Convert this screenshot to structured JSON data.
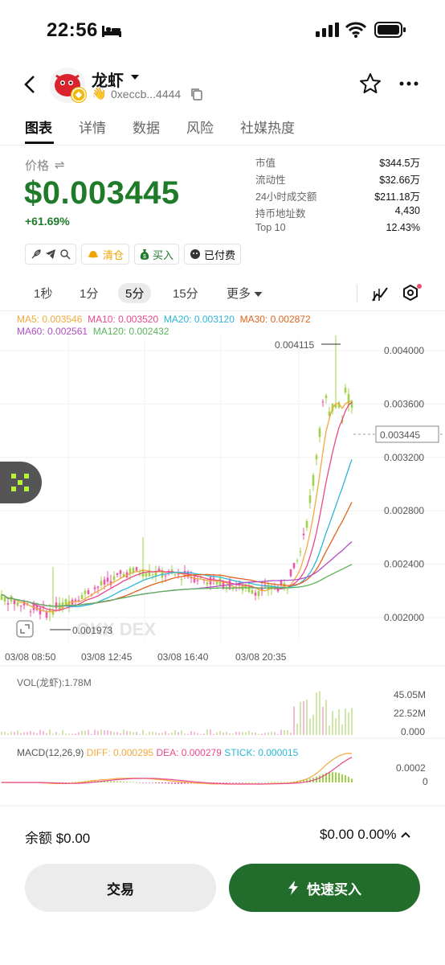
{
  "status_bar": {
    "time": "22:56"
  },
  "header": {
    "token_name": "龙虾",
    "address": "0xeccb...4444"
  },
  "tabs": [
    {
      "label": "图表",
      "active": true
    },
    {
      "label": "详情"
    },
    {
      "label": "数据"
    },
    {
      "label": "风险"
    },
    {
      "label": "社媒热度"
    }
  ],
  "price": {
    "label": "价格",
    "value": "$0.003445",
    "change": "+61.69%"
  },
  "stats": [
    {
      "k": "市值",
      "v": "$344.5万"
    },
    {
      "k": "流动性",
      "v": "$32.66万"
    },
    {
      "k": "24小时成交额",
      "v": "$211.18万"
    },
    {
      "k": "持币地址数",
      "v": "4,430"
    },
    {
      "k": "Top 10",
      "v": "12.43%"
    }
  ],
  "tags": {
    "clear": "清仓",
    "buy": "买入",
    "paid": "已付费"
  },
  "intervals": [
    {
      "label": "1秒"
    },
    {
      "label": "1分"
    },
    {
      "label": "5分",
      "active": true
    },
    {
      "label": "15分"
    },
    {
      "label": "更多"
    }
  ],
  "ma": {
    "ma5": "MA5: 0.003546",
    "ma10": "MA10: 0.003520",
    "ma20": "MA20: 0.003120",
    "ma30": "MA30: 0.002872",
    "ma60": "MA60: 0.002561",
    "ma120": "MA120: 0.002432"
  },
  "colors": {
    "ma5": "#f2a93b",
    "ma10": "#e8488b",
    "ma20": "#2bb6d6",
    "ma30": "#e0641e",
    "ma60": "#b04fc4",
    "ma120": "#5bb35b",
    "up": "#9fd14a",
    "down": "#f055a8",
    "accent": "#236d2c"
  },
  "chart_data": {
    "type": "candlestick",
    "y_ticks": [
      "0.004000",
      "0.003600",
      "0.003200",
      "0.002800",
      "0.002400",
      "0.002000"
    ],
    "x_ticks": [
      "03/08 08:50",
      "03/08 12:45",
      "03/08 16:40",
      "03/08 20:35"
    ],
    "high_label": "0.004115",
    "low_label": "0.001973",
    "current_price": "0.003445",
    "watermark": "OKX DEX",
    "volume": {
      "label": "VOL(龙虾):1.78M",
      "ticks": [
        "45.05M",
        "22.52M",
        "0.000"
      ]
    },
    "macd": {
      "label": "MACD(12,26,9)",
      "diff": "DIFF: 0.000295",
      "dea": "DEA: 0.000279",
      "stick": "STICK: 0.000015",
      "ticks": [
        "0.0002",
        "0"
      ]
    }
  },
  "footer": {
    "balance": "余额 $0.00",
    "balance_right": "$0.00 0.00%",
    "trade_button": "交易",
    "quick_buy_button": "快速买入"
  }
}
